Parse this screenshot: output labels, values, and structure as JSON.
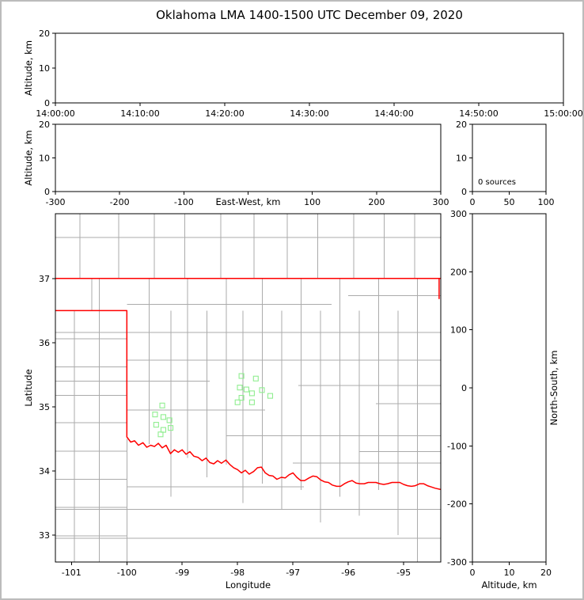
{
  "title": "Oklahoma LMA 1400-1500 UTC December 09, 2020",
  "colors": {
    "axis": "#000000",
    "state_border": "#ff0000",
    "county": "#ababab",
    "source_marker": "#90EE90"
  },
  "chart_data": [
    {
      "id": "alt_time",
      "type": "scatter",
      "xlabel": "",
      "ylabel": "Altitude, km",
      "xlim": [
        0,
        60
      ],
      "ylim": [
        0,
        20
      ],
      "xtick_labels": [
        "14:00:00",
        "14:10:00",
        "14:20:00",
        "14:30:00",
        "14:40:00",
        "14:50:00",
        "15:00:00"
      ],
      "yticks": [
        0,
        10,
        20
      ],
      "points": []
    },
    {
      "id": "alt_ew",
      "type": "scatter",
      "xlabel": "East-West, km",
      "ylabel": "Altitude, km",
      "xlim": [
        -300,
        300
      ],
      "ylim": [
        0,
        20
      ],
      "xticks": [
        -300,
        -200,
        -100,
        0,
        100,
        200,
        300
      ],
      "yticks": [
        0,
        10,
        20
      ],
      "points": []
    },
    {
      "id": "alt_hist",
      "type": "histogram",
      "annotation": "0 sources",
      "xlim": [
        0,
        100
      ],
      "ylim": [
        0,
        20
      ],
      "xticks": [
        0,
        50,
        100
      ],
      "yticks": [
        0,
        10,
        20
      ],
      "values": []
    },
    {
      "id": "plan_map",
      "type": "scatter",
      "xlabel": "Longitude",
      "ylabel": "Latitude",
      "xlim": [
        -101.29,
        -94.33
      ],
      "ylim": [
        32.58,
        38.01
      ],
      "xticks": [
        -101,
        -100,
        -99,
        -98,
        -97,
        -96,
        -95
      ],
      "yticks": [
        33,
        34,
        35,
        36,
        37
      ],
      "marker": "open-square",
      "marker_color": "#90EE90",
      "points": [
        [
          -97.93,
          35.48
        ],
        [
          -97.67,
          35.44
        ],
        [
          -97.96,
          35.3
        ],
        [
          -97.84,
          35.27
        ],
        [
          -97.56,
          35.26
        ],
        [
          -97.74,
          35.21
        ],
        [
          -97.93,
          35.14
        ],
        [
          -98.0,
          35.07
        ],
        [
          -97.74,
          35.07
        ],
        [
          -97.41,
          35.17
        ],
        [
          -99.36,
          35.02
        ],
        [
          -99.49,
          34.88
        ],
        [
          -99.34,
          34.84
        ],
        [
          -99.23,
          34.79
        ],
        [
          -99.47,
          34.72
        ],
        [
          -99.34,
          34.64
        ],
        [
          -99.21,
          34.67
        ],
        [
          -99.39,
          34.57
        ]
      ],
      "geography": {
        "county_color": "#ababab",
        "border_color": "#ff0000",
        "counties": [
          [
            -100.85,
            37.0,
            -100.85,
            38.01
          ],
          [
            -100.15,
            37.0,
            -100.15,
            38.01
          ],
          [
            -99.5,
            37.0,
            -99.5,
            38.01
          ],
          [
            -98.95,
            37.0,
            -98.95,
            38.01
          ],
          [
            -98.3,
            37.0,
            -98.3,
            38.01
          ],
          [
            -97.7,
            37.0,
            -97.7,
            38.01
          ],
          [
            -97.1,
            37.0,
            -97.1,
            38.01
          ],
          [
            -96.55,
            37.0,
            -96.55,
            38.01
          ],
          [
            -95.9,
            37.0,
            -95.9,
            38.01
          ],
          [
            -95.35,
            37.0,
            -95.35,
            38.01
          ],
          [
            -94.8,
            37.0,
            -94.8,
            38.01
          ],
          [
            -101.29,
            37.64,
            -94.33,
            37.64
          ],
          [
            -100.95,
            32.58,
            -100.95,
            36.5
          ],
          [
            -100.5,
            32.58,
            -100.5,
            37.0
          ],
          [
            -100.63,
            36.5,
            -100.63,
            37.0
          ],
          [
            -100.0,
            32.58,
            -100.0,
            34.5
          ],
          [
            -101.29,
            36.06,
            -100.0,
            36.06
          ],
          [
            -101.29,
            35.62,
            -100.0,
            35.62
          ],
          [
            -101.29,
            35.18,
            -100.0,
            35.18
          ],
          [
            -101.29,
            34.75,
            -100.0,
            34.75
          ],
          [
            -101.29,
            34.31,
            -100.0,
            34.31
          ],
          [
            -101.29,
            33.87,
            -100.0,
            33.87
          ],
          [
            -101.29,
            33.43,
            -100.0,
            33.43
          ],
          [
            -101.29,
            32.99,
            -100.0,
            32.99
          ],
          [
            -99.6,
            34.42,
            -99.6,
            37.0
          ],
          [
            -99.2,
            33.6,
            -99.2,
            36.5
          ],
          [
            -98.9,
            34.2,
            -98.9,
            37.0
          ],
          [
            -98.55,
            33.9,
            -98.55,
            36.5
          ],
          [
            -98.2,
            34.1,
            -98.2,
            37.0
          ],
          [
            -97.9,
            33.5,
            -97.9,
            36.5
          ],
          [
            -97.55,
            33.8,
            -97.55,
            37.0
          ],
          [
            -97.2,
            33.4,
            -97.2,
            36.5
          ],
          [
            -96.85,
            33.7,
            -96.85,
            37.0
          ],
          [
            -96.5,
            33.2,
            -96.5,
            36.5
          ],
          [
            -96.15,
            33.6,
            -96.15,
            37.0
          ],
          [
            -95.8,
            33.3,
            -95.8,
            36.5
          ],
          [
            -95.45,
            33.7,
            -95.45,
            37.0
          ],
          [
            -95.1,
            33.0,
            -95.1,
            36.5
          ],
          [
            -94.75,
            32.58,
            -94.75,
            37.0
          ],
          [
            -100.0,
            36.6,
            -96.3,
            36.6
          ],
          [
            -101.29,
            36.16,
            -94.33,
            36.16
          ],
          [
            -100.0,
            35.73,
            -94.33,
            35.73
          ],
          [
            -101.29,
            35.4,
            -98.5,
            35.4
          ],
          [
            -96.9,
            35.33,
            -94.33,
            35.33
          ],
          [
            -100.0,
            34.95,
            -97.5,
            34.95
          ],
          [
            -98.2,
            34.55,
            -94.33,
            34.55
          ],
          [
            -97.0,
            34.12,
            -94.33,
            34.12
          ],
          [
            -100.0,
            33.75,
            -96.8,
            33.75
          ],
          [
            -101.29,
            33.4,
            -94.33,
            33.4
          ],
          [
            -101.29,
            32.95,
            -94.33,
            32.95
          ],
          [
            -96.0,
            36.73,
            -94.33,
            36.73
          ],
          [
            -95.5,
            35.05,
            -94.33,
            35.05
          ],
          [
            -95.8,
            34.3,
            -94.33,
            34.3
          ]
        ],
        "state_border": [
          [
            [
              -101.29,
              37.0
            ],
            [
              -94.33,
              37.0
            ]
          ],
          [
            [
              -94.36,
              37.0
            ],
            [
              -94.36,
              36.68
            ]
          ],
          [
            [
              -101.29,
              36.5
            ],
            [
              -100.0,
              36.5
            ],
            [
              -100.0,
              34.53
            ],
            [
              -99.93,
              34.45
            ],
            [
              -99.86,
              34.47
            ],
            [
              -99.79,
              34.4
            ],
            [
              -99.71,
              34.44
            ],
            [
              -99.64,
              34.37
            ],
            [
              -99.57,
              34.4
            ],
            [
              -99.5,
              34.38
            ],
            [
              -99.43,
              34.43
            ],
            [
              -99.36,
              34.36
            ],
            [
              -99.29,
              34.4
            ],
            [
              -99.21,
              34.27
            ],
            [
              -99.14,
              34.33
            ],
            [
              -99.07,
              34.29
            ],
            [
              -99.0,
              34.33
            ],
            [
              -98.93,
              34.26
            ],
            [
              -98.86,
              34.3
            ],
            [
              -98.79,
              34.23
            ],
            [
              -98.71,
              34.21
            ],
            [
              -98.64,
              34.16
            ],
            [
              -98.57,
              34.2
            ],
            [
              -98.5,
              34.13
            ],
            [
              -98.43,
              34.11
            ],
            [
              -98.36,
              34.16
            ],
            [
              -98.29,
              34.12
            ],
            [
              -98.21,
              34.17
            ],
            [
              -98.14,
              34.1
            ],
            [
              -98.07,
              34.05
            ],
            [
              -98.0,
              34.02
            ],
            [
              -97.93,
              33.97
            ],
            [
              -97.86,
              34.01
            ],
            [
              -97.79,
              33.95
            ],
            [
              -97.71,
              33.99
            ],
            [
              -97.64,
              34.05
            ],
            [
              -97.57,
              34.06
            ],
            [
              -97.5,
              33.97
            ],
            [
              -97.43,
              33.93
            ],
            [
              -97.36,
              33.92
            ],
            [
              -97.29,
              33.87
            ],
            [
              -97.21,
              33.9
            ],
            [
              -97.14,
              33.89
            ],
            [
              -97.07,
              33.94
            ],
            [
              -97.0,
              33.97
            ],
            [
              -96.93,
              33.9
            ],
            [
              -96.86,
              33.85
            ],
            [
              -96.79,
              33.85
            ],
            [
              -96.71,
              33.89
            ],
            [
              -96.64,
              33.92
            ],
            [
              -96.57,
              33.91
            ],
            [
              -96.5,
              33.86
            ],
            [
              -96.43,
              33.83
            ],
            [
              -96.36,
              33.82
            ],
            [
              -96.29,
              33.78
            ],
            [
              -96.21,
              33.76
            ],
            [
              -96.14,
              33.76
            ],
            [
              -96.07,
              33.8
            ],
            [
              -96.0,
              33.83
            ],
            [
              -95.93,
              33.85
            ],
            [
              -95.86,
              33.81
            ],
            [
              -95.79,
              33.8
            ],
            [
              -95.71,
              33.8
            ],
            [
              -95.64,
              33.82
            ],
            [
              -95.57,
              33.82
            ],
            [
              -95.5,
              33.82
            ],
            [
              -95.43,
              33.8
            ],
            [
              -95.36,
              33.79
            ],
            [
              -95.29,
              33.8
            ],
            [
              -95.21,
              33.82
            ],
            [
              -95.14,
              33.82
            ],
            [
              -95.07,
              33.82
            ],
            [
              -95.0,
              33.79
            ],
            [
              -94.93,
              33.77
            ],
            [
              -94.86,
              33.76
            ],
            [
              -94.79,
              33.77
            ],
            [
              -94.71,
              33.8
            ],
            [
              -94.64,
              33.8
            ],
            [
              -94.57,
              33.77
            ],
            [
              -94.5,
              33.75
            ],
            [
              -94.43,
              33.73
            ],
            [
              -94.33,
              33.71
            ]
          ]
        ]
      }
    },
    {
      "id": "alt_ns",
      "type": "scatter",
      "xlabel": "Altitude, km",
      "ylabel": "North-South, km",
      "xlim": [
        0,
        20
      ],
      "ylim": [
        -300,
        300
      ],
      "xticks": [
        0,
        10,
        20
      ],
      "yticks": [
        -300,
        -200,
        -100,
        0,
        100,
        200,
        300
      ],
      "points": []
    }
  ]
}
